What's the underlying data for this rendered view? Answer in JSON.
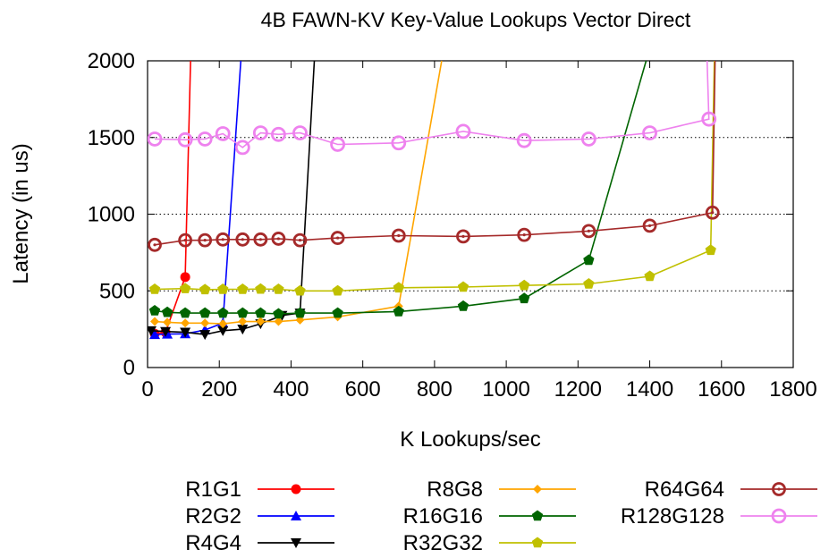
{
  "chart_data": {
    "type": "line",
    "title": "4B FAWN-KV Key-Value Lookups Vector Direct",
    "xlabel": "K Lookups/sec",
    "ylabel": "Latency (in us)",
    "xlim": [
      0,
      1800
    ],
    "ylim": [
      0,
      2000
    ],
    "xticks": [
      0,
      200,
      400,
      600,
      800,
      1000,
      1200,
      1400,
      1600,
      1800
    ],
    "yticks": [
      0,
      500,
      1000,
      1500,
      2000
    ],
    "grid": "horizontal dotted",
    "legend_position": "bottom",
    "series": [
      {
        "name": "R1G1",
        "color": "#ff0000",
        "marker": "circle-filled",
        "points": [
          [
            20,
            220
          ],
          [
            50,
            230
          ],
          [
            105,
            590
          ]
        ],
        "tail": [
          [
            105,
            590
          ],
          [
            120,
            2000
          ]
        ]
      },
      {
        "name": "R2G2",
        "color": "#0000ff",
        "marker": "triangle-up",
        "points": [
          [
            20,
            215
          ],
          [
            55,
            218
          ],
          [
            105,
            220
          ],
          [
            160,
            245
          ],
          [
            210,
            290
          ]
        ],
        "tail": [
          [
            210,
            290
          ],
          [
            260,
            2000
          ]
        ]
      },
      {
        "name": "R4G4",
        "color": "#000000",
        "marker": "triangle-down",
        "points": [
          [
            10,
            240
          ],
          [
            50,
            235
          ],
          [
            105,
            230
          ],
          [
            160,
            215
          ],
          [
            210,
            240
          ],
          [
            265,
            250
          ],
          [
            315,
            285
          ],
          [
            375,
            340
          ],
          [
            425,
            355
          ]
        ],
        "tail": [
          [
            425,
            355
          ],
          [
            465,
            2000
          ]
        ]
      },
      {
        "name": "R8G8",
        "color": "#ffa500",
        "marker": "diamond",
        "points": [
          [
            20,
            300
          ],
          [
            55,
            295
          ],
          [
            105,
            290
          ],
          [
            160,
            290
          ],
          [
            210,
            285
          ],
          [
            265,
            300
          ],
          [
            315,
            300
          ],
          [
            365,
            300
          ],
          [
            425,
            310
          ],
          [
            530,
            330
          ],
          [
            700,
            400
          ]
        ],
        "tail": [
          [
            700,
            400
          ],
          [
            820,
            2000
          ]
        ]
      },
      {
        "name": "R16G16",
        "color": "#006400",
        "marker": "pentagon",
        "points": [
          [
            20,
            370
          ],
          [
            55,
            360
          ],
          [
            105,
            355
          ],
          [
            160,
            355
          ],
          [
            210,
            355
          ],
          [
            265,
            355
          ],
          [
            315,
            355
          ],
          [
            365,
            350
          ],
          [
            425,
            355
          ],
          [
            530,
            355
          ],
          [
            700,
            365
          ],
          [
            880,
            400
          ],
          [
            1050,
            450
          ],
          [
            1230,
            700
          ]
        ],
        "tail": [
          [
            1230,
            700
          ],
          [
            1390,
            2000
          ]
        ]
      },
      {
        "name": "R32G32",
        "color": "#c0c000",
        "marker": "pentagon",
        "points": [
          [
            20,
            510
          ],
          [
            105,
            515
          ],
          [
            160,
            508
          ],
          [
            210,
            510
          ],
          [
            265,
            510
          ],
          [
            315,
            512
          ],
          [
            365,
            510
          ],
          [
            425,
            500
          ],
          [
            530,
            500
          ],
          [
            700,
            520
          ],
          [
            880,
            525
          ],
          [
            1050,
            535
          ],
          [
            1230,
            545
          ],
          [
            1400,
            595
          ],
          [
            1570,
            765
          ]
        ],
        "tail": [
          [
            1570,
            765
          ],
          [
            1580,
            2000
          ]
        ]
      },
      {
        "name": "R64G64",
        "color": "#a52a2a",
        "marker": "circle-dot",
        "points": [
          [
            20,
            800
          ],
          [
            105,
            830
          ],
          [
            160,
            830
          ],
          [
            210,
            835
          ],
          [
            265,
            835
          ],
          [
            315,
            835
          ],
          [
            365,
            840
          ],
          [
            425,
            830
          ],
          [
            530,
            845
          ],
          [
            700,
            860
          ],
          [
            880,
            855
          ],
          [
            1050,
            865
          ],
          [
            1230,
            890
          ],
          [
            1400,
            925
          ],
          [
            1575,
            1010
          ]
        ],
        "tail": [
          [
            1575,
            1010
          ],
          [
            1582,
            2000
          ]
        ]
      },
      {
        "name": "R128G128",
        "color": "#ee82ee",
        "marker": "circle-open",
        "points": [
          [
            20,
            1490
          ],
          [
            105,
            1485
          ],
          [
            160,
            1490
          ],
          [
            210,
            1525
          ],
          [
            265,
            1435
          ],
          [
            315,
            1530
          ],
          [
            365,
            1520
          ],
          [
            425,
            1530
          ],
          [
            530,
            1455
          ],
          [
            700,
            1465
          ],
          [
            880,
            1540
          ],
          [
            1050,
            1480
          ],
          [
            1230,
            1490
          ],
          [
            1400,
            1530
          ],
          [
            1565,
            1620
          ]
        ],
        "tail": [
          [
            1565,
            1620
          ],
          [
            1560,
            2000
          ]
        ]
      }
    ]
  }
}
